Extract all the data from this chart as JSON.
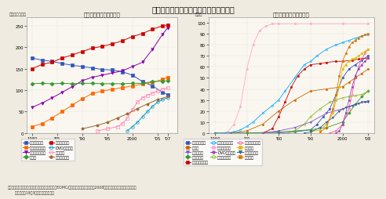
{
  "title": "主要耐久消費財の保有率と普及率の推移",
  "left_title": "主要耐久消費財の保有率",
  "right_title": "主要耐久消費財の普及率",
  "left_ylabel": "（台／百世帯）",
  "right_ylabel": "（％）",
  "background_color": "#f0ebe0",
  "plot_bg_color": "#faf7f0",
  "source_text": "資料：保有率は（財）日本エネルギー経済研究所「EDMC/エネルギー・経済統計要覧2008年版」、普及率は内閣府消費動向\n      調査（平成19年3月）より環境省作成",
  "left_series": {
    "石油ストーブ": {
      "color": "#3355bb",
      "marker": "s",
      "markersize": 2.5,
      "fillstyle": "full",
      "data_x": [
        1980,
        1982,
        1984,
        1986,
        1988,
        1990,
        1992,
        1994,
        1996,
        1998,
        2000,
        2002,
        2004,
        2006,
        2007
      ],
      "data_y": [
        175,
        170,
        167,
        162,
        158,
        155,
        152,
        148,
        147,
        143,
        135,
        120,
        110,
        95,
        90
      ]
    },
    "ルームエアコン": {
      "color": "#8800aa",
      "marker": "v",
      "markersize": 2.5,
      "fillstyle": "full",
      "data_x": [
        1980,
        1982,
        1984,
        1986,
        1988,
        1990,
        1992,
        1994,
        1996,
        1998,
        2000,
        2002,
        2004,
        2006,
        2007
      ],
      "data_y": [
        60,
        70,
        82,
        95,
        108,
        122,
        130,
        135,
        140,
        145,
        155,
        165,
        195,
        230,
        245
      ]
    },
    "カラーテレビ": {
      "color": "#cc0000",
      "marker": "s",
      "markersize": 2.5,
      "fillstyle": "full",
      "data_x": [
        1980,
        1982,
        1984,
        1986,
        1988,
        1990,
        1992,
        1994,
        1996,
        1998,
        2000,
        2002,
        2004,
        2006,
        2007
      ],
      "data_y": [
        150,
        160,
        165,
        175,
        182,
        190,
        198,
        202,
        208,
        215,
        225,
        232,
        242,
        250,
        252
      ]
    },
    "パソコン": {
      "color": "#ff88bb",
      "marker": "s",
      "markersize": 2.5,
      "fillstyle": "none",
      "data_x": [
        1993,
        1995,
        1997,
        1998,
        1999,
        2000,
        2001,
        2002,
        2003,
        2004,
        2005,
        2006,
        2007
      ],
      "data_y": [
        5,
        10,
        15,
        22,
        35,
        55,
        72,
        82,
        88,
        93,
        98,
        102,
        105
      ]
    },
    "ファンヒーター": {
      "color": "#ff6600",
      "marker": "s",
      "markersize": 2.5,
      "fillstyle": "full",
      "data_x": [
        1980,
        1982,
        1984,
        1986,
        1988,
        1990,
        1992,
        1994,
        1996,
        1998,
        2000,
        2002,
        2004,
        2006,
        2007
      ],
      "data_y": [
        15,
        22,
        35,
        50,
        65,
        80,
        92,
        98,
        102,
        106,
        110,
        114,
        118,
        125,
        130
      ]
    },
    "冷蔵庫": {
      "color": "#339933",
      "marker": "D",
      "markersize": 2.5,
      "fillstyle": "full",
      "data_x": [
        1980,
        1982,
        1984,
        1986,
        1988,
        1990,
        1992,
        1994,
        1996,
        1998,
        2000,
        2002,
        2004,
        2006,
        2007
      ],
      "data_y": [
        115,
        116,
        115,
        116,
        115,
        116,
        116,
        115,
        115,
        115,
        116,
        116,
        120,
        121,
        122
      ]
    },
    "DVDプレーヤ": {
      "color": "#0099cc",
      "marker": "o",
      "markersize": 2.5,
      "fillstyle": "none",
      "data_x": [
        1999,
        2000,
        2001,
        2002,
        2003,
        2004,
        2005,
        2006,
        2007
      ],
      "data_y": [
        5,
        15,
        25,
        38,
        50,
        62,
        72,
        78,
        82
      ]
    },
    "温水は浄便座": {
      "color": "#996633",
      "marker": "p",
      "markersize": 2.5,
      "fillstyle": "full",
      "data_x": [
        1990,
        1993,
        1995,
        1997,
        1999,
        2001,
        2003,
        2005,
        2007
      ],
      "data_y": [
        10,
        18,
        25,
        35,
        45,
        57,
        68,
        78,
        85
      ]
    }
  },
  "right_series": {
    "温水洗浄便座": {
      "color": "#3355bb",
      "marker": "s",
      "markersize": 1.8,
      "fillstyle": "full",
      "data_x": [
        1960,
        1965,
        1970,
        1975,
        1980,
        1985,
        1990,
        1992,
        1994,
        1996,
        1998,
        2000,
        2002,
        2004,
        2006,
        2008
      ],
      "data_y": [
        0,
        0,
        0,
        0,
        0,
        1,
        3,
        8,
        15,
        22,
        35,
        50,
        58,
        62,
        66,
        70
      ]
    },
    "食器洗い機": {
      "color": "#339933",
      "marker": "D",
      "markersize": 1.8,
      "fillstyle": "full",
      "data_x": [
        1960,
        1970,
        1980,
        1985,
        1990,
        1995,
        2000,
        2002,
        2004,
        2006,
        2008
      ],
      "data_y": [
        0,
        0,
        1,
        2,
        3,
        5,
        10,
        18,
        26,
        33,
        38
      ]
    },
    "カラーテレビ": {
      "color": "#ffaacc",
      "marker": "s",
      "markersize": 1.8,
      "fillstyle": "full",
      "data_x": [
        1960,
        1962,
        1964,
        1966,
        1968,
        1970,
        1972,
        1974,
        1976,
        1978,
        1980,
        1985,
        1990,
        2000,
        2008
      ],
      "data_y": [
        0,
        0,
        1,
        8,
        24,
        58,
        80,
        93,
        97,
        99,
        99,
        99,
        99,
        99,
        99
      ]
    },
    "デジタルカメラ": {
      "color": "#ff55aa",
      "marker": "o",
      "markersize": 1.8,
      "fillstyle": "none",
      "data_x": [
        1996,
        1998,
        2000,
        2002,
        2003,
        2004,
        2005,
        2006,
        2007,
        2008
      ],
      "data_y": [
        0,
        2,
        8,
        22,
        35,
        50,
        60,
        67,
        72,
        76
      ]
    },
    "温水器": {
      "color": "#cc6600",
      "marker": "s",
      "markersize": 1.8,
      "fillstyle": "full",
      "data_x": [
        1960,
        1965,
        1970,
        1975,
        1980,
        1985,
        1990,
        1995,
        2000,
        2002,
        2004,
        2006,
        2008
      ],
      "data_y": [
        0,
        0,
        2,
        8,
        20,
        30,
        38,
        40,
        42,
        46,
        50,
        54,
        58
      ]
    },
    "ファンヒーター": {
      "color": "#cc0000",
      "marker": "s",
      "markersize": 1.8,
      "fillstyle": "full",
      "data_x": [
        1975,
        1978,
        1980,
        1982,
        1984,
        1986,
        1988,
        1990,
        1993,
        1995,
        1998,
        2000,
        2003,
        2005,
        2008
      ],
      "data_y": [
        0,
        4,
        15,
        28,
        42,
        52,
        58,
        62,
        63,
        64,
        65,
        65,
        66,
        67,
        68
      ]
    },
    "DVDプレーヤ": {
      "color": "#9944bb",
      "marker": "p",
      "markersize": 1.8,
      "fillstyle": "full",
      "data_x": [
        1998,
        1999,
        2000,
        2001,
        2002,
        2003,
        2004,
        2005,
        2006,
        2007,
        2008
      ],
      "data_y": [
        0,
        2,
        8,
        18,
        30,
        42,
        52,
        58,
        62,
        65,
        68
      ]
    },
    "パソコン": {
      "color": "#ddbb00",
      "marker": "s",
      "markersize": 1.8,
      "fillstyle": "full",
      "data_x": [
        1990,
        1993,
        1995,
        1997,
        1999,
        2000,
        2001,
        2002,
        2003,
        2004,
        2005,
        2006,
        2007,
        2008
      ],
      "data_y": [
        1,
        3,
        8,
        18,
        42,
        58,
        62,
        65,
        67,
        68,
        70,
        72,
        74,
        76
      ]
    },
    "ルームエアコン": {
      "color": "#00aaff",
      "marker": "o",
      "markersize": 1.8,
      "fillstyle": "none",
      "data_x": [
        1960,
        1963,
        1966,
        1968,
        1970,
        1972,
        1975,
        1978,
        1980,
        1982,
        1985,
        1988,
        1990,
        1992,
        1995,
        1998,
        2000,
        2002,
        2004,
        2006,
        2008
      ],
      "data_y": [
        0,
        0,
        1,
        3,
        6,
        10,
        18,
        25,
        30,
        38,
        50,
        62,
        65,
        70,
        76,
        80,
        82,
        84,
        86,
        88,
        89
      ]
    },
    "ビデオカメラ": {
      "color": "#88bb22",
      "marker": "o",
      "markersize": 1.8,
      "fillstyle": "none",
      "data_x": [
        1983,
        1985,
        1988,
        1990,
        1993,
        1996,
        1998,
        2000,
        2002,
        2004,
        2006,
        2008
      ],
      "data_y": [
        0,
        2,
        8,
        15,
        22,
        28,
        30,
        32,
        33,
        34,
        35,
        38
      ]
    },
    "衣類乾燥機": {
      "color": "#8855cc",
      "marker": "v",
      "markersize": 1.8,
      "fillstyle": "full",
      "data_x": [
        1975,
        1980,
        1985,
        1990,
        1995,
        2000,
        2002,
        2004,
        2006,
        2008
      ],
      "data_y": [
        0,
        2,
        5,
        10,
        18,
        22,
        24,
        26,
        28,
        29
      ]
    },
    "ファクシミリ": {
      "color": "#336699",
      "marker": "v",
      "markersize": 1.8,
      "fillstyle": "full",
      "data_x": [
        1988,
        1990,
        1993,
        1995,
        1997,
        1999,
        2001,
        2003,
        2005,
        2007,
        2008
      ],
      "data_y": [
        0,
        1,
        5,
        10,
        14,
        20,
        23,
        25,
        27,
        28,
        28
      ]
    },
    "携帯電話": {
      "color": "#dd7700",
      "marker": "s",
      "markersize": 1.8,
      "fillstyle": "full",
      "data_x": [
        1993,
        1995,
        1997,
        1998,
        1999,
        2000,
        2001,
        2002,
        2003,
        2004,
        2005,
        2006,
        2007,
        2008
      ],
      "data_y": [
        1,
        5,
        22,
        35,
        52,
        65,
        72,
        78,
        82,
        84,
        86,
        88,
        89,
        90
      ]
    }
  },
  "left_legend_order": [
    "石油ストーブ",
    "ファンヒーター",
    "ルームエアコン",
    "冷蔵庫",
    "カラーテレビ",
    "DVDプレーヤ",
    "パソコン",
    "温水は浄便座"
  ],
  "right_legend_order": [
    "温水洗浄便座",
    "温水器",
    "衣類乾燥機",
    "食器洗い機",
    "ファンヒーター",
    "ルームエアコン",
    "カラーテレビ",
    "DVDプレーヤ",
    "ビデオカメラ",
    "デジタルカメラ",
    "パソコン",
    "ファクシミリ",
    "携帯電話"
  ]
}
